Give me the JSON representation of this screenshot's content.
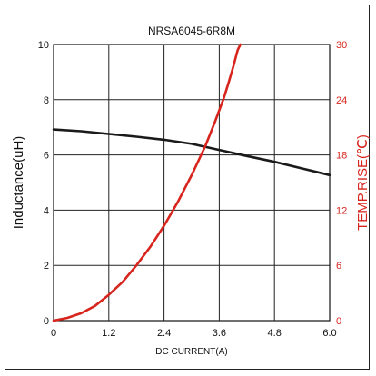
{
  "chart_data": {
    "type": "line",
    "title": "NRSA6045-6R8M",
    "xlabel": "DC CURRENT(A)",
    "ylabel": "Inductance(uH)",
    "y2label": "TEMP.RISE(℃)",
    "xlim": [
      0,
      6.0
    ],
    "ylim": [
      0,
      10
    ],
    "y2lim": [
      0,
      30
    ],
    "xticks": [
      "0",
      "1.2",
      "2.4",
      "3.6",
      "4.8",
      "6.0"
    ],
    "yticks": [
      "0",
      "2",
      "4",
      "6",
      "8",
      "10"
    ],
    "y2ticks": [
      "0",
      "6",
      "12",
      "18",
      "24",
      "30"
    ],
    "grid": true,
    "colors": {
      "inductance": "#1a1a1a",
      "temp": "#d7251e"
    },
    "series": [
      {
        "axis": "left",
        "x": [
          0,
          0.6,
          1.2,
          1.8,
          2.4,
          3.0,
          3.6,
          4.2,
          4.8,
          5.4,
          6.0
        ],
        "values": [
          6.92,
          6.86,
          6.76,
          6.66,
          6.55,
          6.4,
          6.18,
          5.96,
          5.75,
          5.51,
          5.27
        ]
      },
      {
        "axis": "right",
        "x": [
          0,
          0.3,
          0.6,
          0.9,
          1.2,
          1.5,
          1.8,
          2.1,
          2.4,
          2.7,
          3.0,
          3.3,
          3.5,
          3.7,
          3.8,
          3.9,
          4.0,
          4.06
        ],
        "values": [
          0,
          0.3,
          0.8,
          1.6,
          2.8,
          4.2,
          6.0,
          8.0,
          10.3,
          12.9,
          15.8,
          19.0,
          21.5,
          24.2,
          25.8,
          27.5,
          29.4,
          30
        ]
      }
    ]
  }
}
